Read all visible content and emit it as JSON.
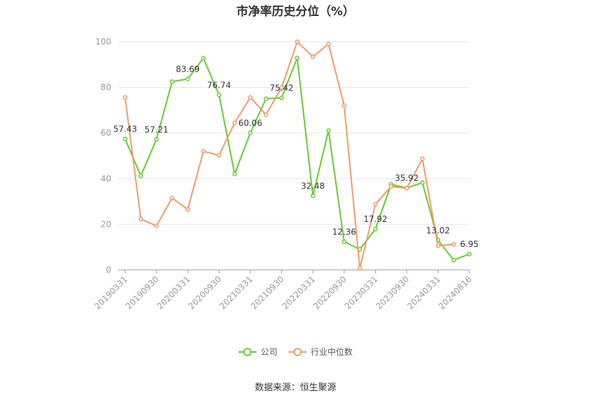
{
  "chart_data": {
    "type": "line",
    "title": "市净率历史分位（%）",
    "x": [
      "20190331",
      "20190630",
      "20190930",
      "20191231",
      "20200331",
      "20200630",
      "20200930",
      "20201231",
      "20210331",
      "20210630",
      "20210930",
      "20211231",
      "20220331",
      "20220630",
      "20220930",
      "20221231",
      "20230331",
      "20230630",
      "20230930",
      "20231231",
      "20240331",
      "20240630",
      "20240816"
    ],
    "x_tick_labels": [
      "20190331",
      "20190930",
      "20200331",
      "20200930",
      "20210331",
      "20210930",
      "20220331",
      "20220930",
      "20230331",
      "20230930",
      "20240331",
      "20240816"
    ],
    "ylim": [
      0,
      100
    ],
    "y_ticks": [
      0,
      20,
      40,
      60,
      80,
      100
    ],
    "grid": true,
    "legend_position": "bottom",
    "series": [
      {
        "name": "公司",
        "color": "#66cc33",
        "values": [
          57.43,
          41.2,
          57.21,
          82.5,
          83.69,
          92.8,
          76.74,
          42.0,
          60.06,
          75.0,
          75.42,
          92.9,
          32.48,
          61.1,
          12.36,
          9.0,
          17.92,
          37.5,
          35.92,
          38.3,
          13.02,
          4.3,
          6.95
        ],
        "labels": {
          "0": "57.43",
          "2": "57.21",
          "4": "83.69",
          "6": "76.74",
          "8": "60.06",
          "10": "75.42",
          "12": "32.48",
          "14": "12.36",
          "16": "17.92",
          "18": "35.92",
          "20": "13.02",
          "22": "6.95"
        }
      },
      {
        "name": "行业中位数",
        "color": "#f59a6b",
        "values": [
          75.6,
          22.3,
          19.3,
          31.5,
          26.5,
          52.0,
          50.2,
          64.4,
          75.6,
          68.0,
          79.9,
          100.0,
          93.4,
          99.0,
          72.0,
          0.8,
          28.8,
          36.6,
          35.8,
          48.7,
          10.6,
          11.2,
          null
        ]
      }
    ],
    "source": "数据来源：恒生聚源"
  }
}
